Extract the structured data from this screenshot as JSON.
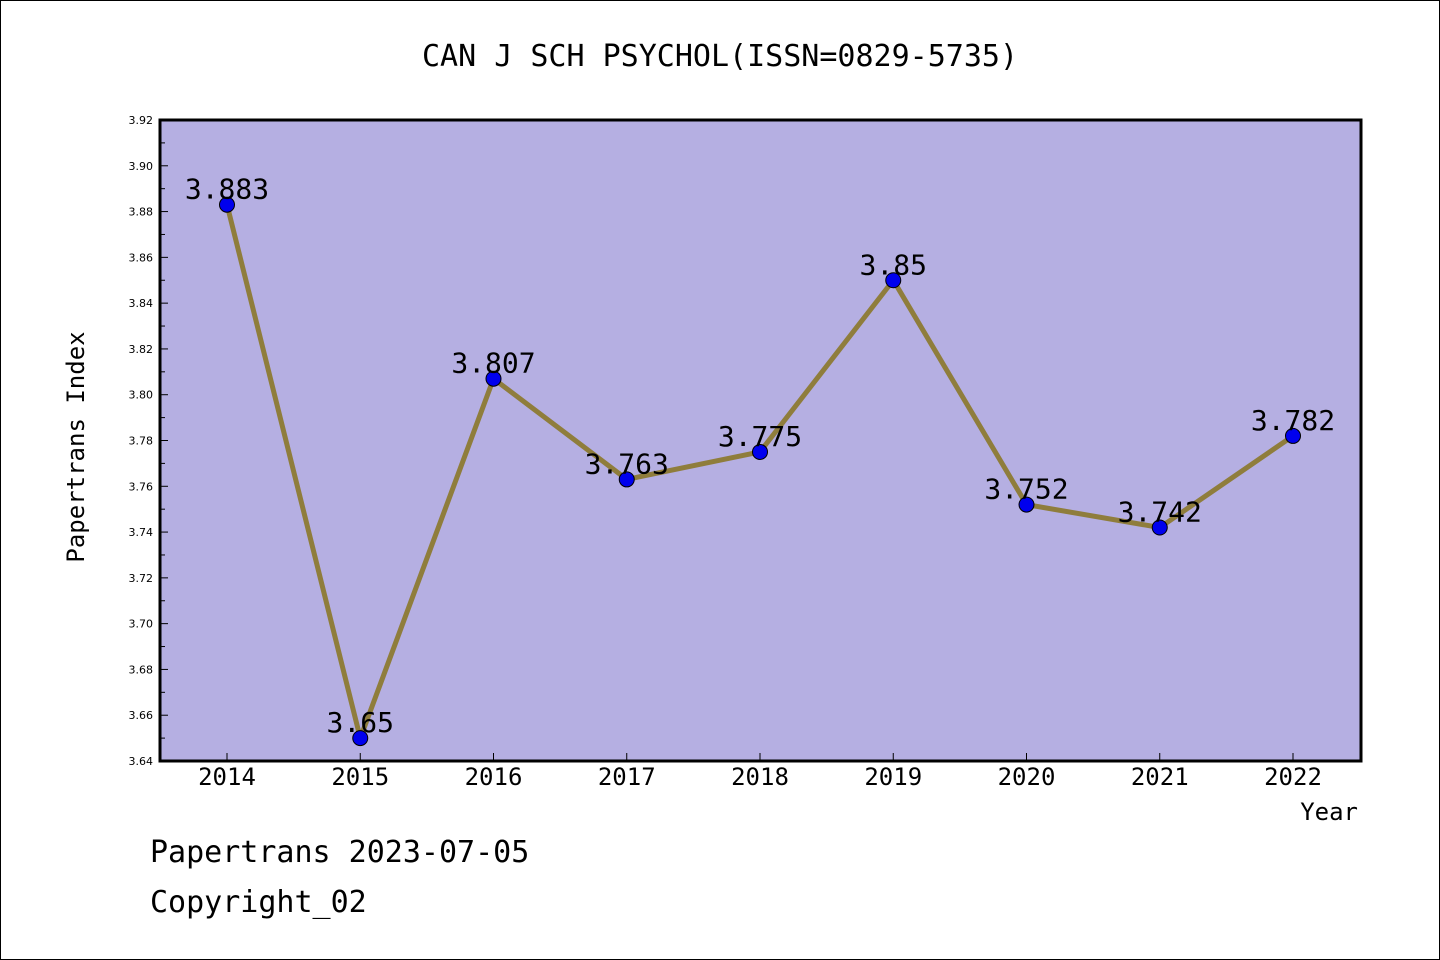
{
  "chart_data": {
    "type": "line",
    "title": "CAN J SCH PSYCHOL(ISSN=0829-5735)",
    "xlabel": "Year",
    "ylabel": "Papertrans Index",
    "categories": [
      "2014",
      "2015",
      "2016",
      "2017",
      "2018",
      "2019",
      "2020",
      "2021",
      "2022"
    ],
    "values": [
      3.883,
      3.65,
      3.807,
      3.763,
      3.775,
      3.85,
      3.752,
      3.742,
      3.782
    ],
    "data_labels": [
      "3.883",
      "3.65",
      "3.807",
      "3.763",
      "3.775",
      "3.85",
      "3.752",
      "3.742",
      "3.782"
    ],
    "ylim": [
      3.64,
      3.92
    ],
    "yticks": [
      "3.64",
      "3.66",
      "3.68",
      "3.70",
      "3.72",
      "3.74",
      "3.76",
      "3.78",
      "3.80",
      "3.82",
      "3.84",
      "3.86",
      "3.88",
      "3.90",
      "3.92"
    ],
    "grid": false,
    "colors": {
      "plot_background": "#b5afe2",
      "line": "#8f7d3c",
      "marker": "#0000ee"
    }
  },
  "footer": {
    "line1": "Papertrans 2023-07-05",
    "line2": "Copyright_02"
  }
}
